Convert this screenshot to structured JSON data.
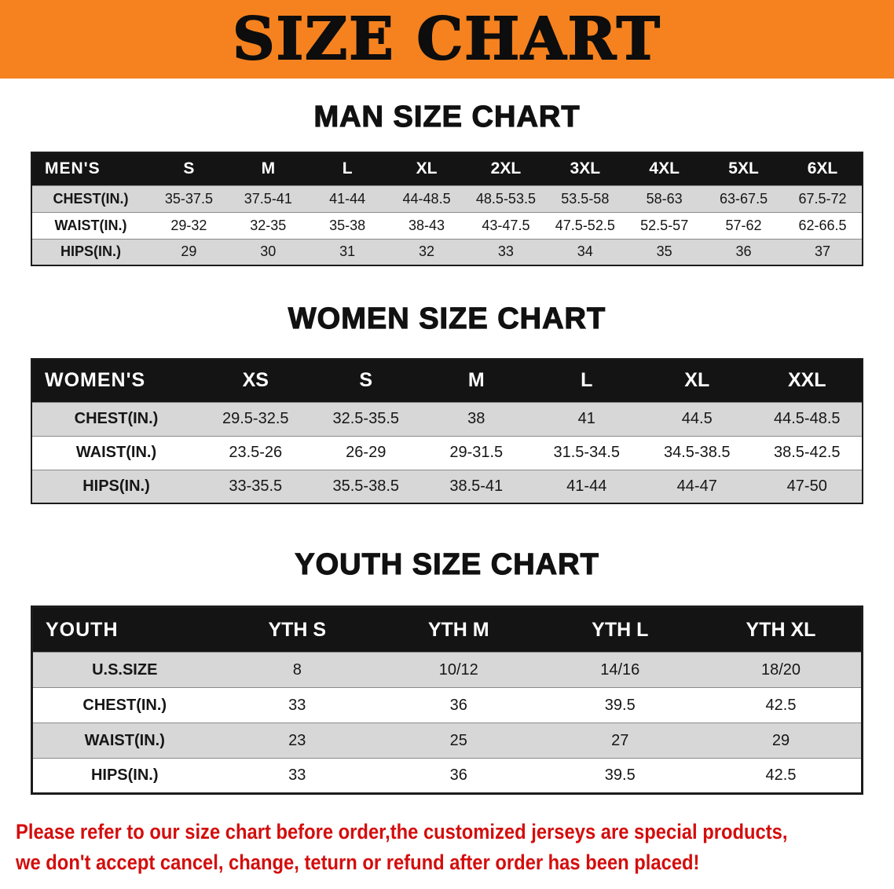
{
  "banner": {
    "title": "SIZE CHART"
  },
  "sections": [
    {
      "heading": "MAN SIZE CHART",
      "table": {
        "corner": "MEN'S",
        "columns": [
          "S",
          "M",
          "L",
          "XL",
          "2XL",
          "3XL",
          "4XL",
          "5XL",
          "6XL"
        ],
        "rows": [
          {
            "label": "CHEST(IN.)",
            "values": [
              "35-37.5",
              "37.5-41",
              "41-44",
              "44-48.5",
              "48.5-53.5",
              "53.5-58",
              "58-63",
              "63-67.5",
              "67.5-72"
            ]
          },
          {
            "label": "WAIST(IN.)",
            "values": [
              "29-32",
              "32-35",
              "35-38",
              "38-43",
              "43-47.5",
              "47.5-52.5",
              "52.5-57",
              "57-62",
              "62-66.5"
            ]
          },
          {
            "label": "HIPS(IN.)",
            "values": [
              "29",
              "30",
              "31",
              "32",
              "33",
              "34",
              "35",
              "36",
              "37"
            ]
          }
        ]
      }
    },
    {
      "heading": "WOMEN SIZE CHART",
      "table": {
        "corner": "WOMEN'S",
        "columns": [
          "XS",
          "S",
          "M",
          "L",
          "XL",
          "XXL"
        ],
        "rows": [
          {
            "label": "CHEST(IN.)",
            "values": [
              "29.5-32.5",
              "32.5-35.5",
              "38",
              "41",
              "44.5",
              "44.5-48.5"
            ]
          },
          {
            "label": "WAIST(IN.)",
            "values": [
              "23.5-26",
              "26-29",
              "29-31.5",
              "31.5-34.5",
              "34.5-38.5",
              "38.5-42.5"
            ]
          },
          {
            "label": "HIPS(IN.)",
            "values": [
              "33-35.5",
              "35.5-38.5",
              "38.5-41",
              "41-44",
              "44-47",
              "47-50"
            ]
          }
        ]
      }
    },
    {
      "heading": "YOUTH SIZE CHART",
      "table": {
        "corner": "YOUTH",
        "columns": [
          "YTH S",
          "YTH M",
          "YTH L",
          "YTH XL"
        ],
        "rows": [
          {
            "label": "U.S.SIZE",
            "values": [
              "8",
              "10/12",
              "14/16",
              "18/20"
            ]
          },
          {
            "label": "CHEST(IN.)",
            "values": [
              "33",
              "36",
              "39.5",
              "42.5"
            ]
          },
          {
            "label": "WAIST(IN.)",
            "values": [
              "23",
              "25",
              "27",
              "29"
            ]
          },
          {
            "label": "HIPS(IN.)",
            "values": [
              "33",
              "36",
              "39.5",
              "42.5"
            ]
          }
        ]
      }
    }
  ],
  "disclaimer": {
    "line1": "Please refer to our size chart before order,the customized jerseys are special products,",
    "line2": "we don't accept cancel, change, teturn or refund after order has been placed!"
  },
  "colors": {
    "accent-orange": "#f5821f",
    "header-black": "#141414",
    "row-shade": "#d7d7d7",
    "disclaimer-red": "#d40d0d"
  }
}
